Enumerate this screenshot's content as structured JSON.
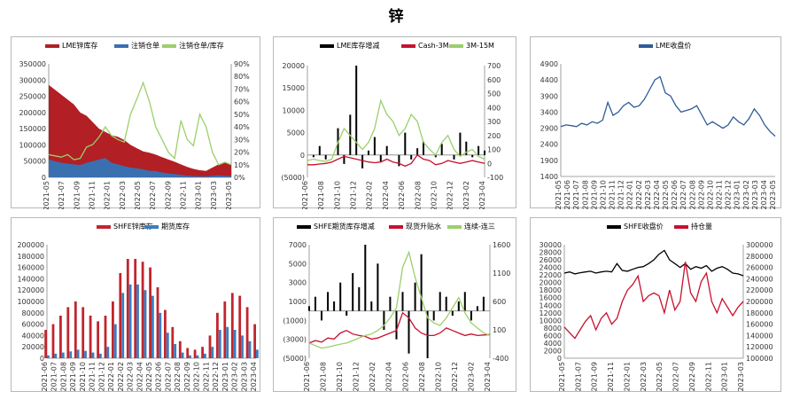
{
  "title": "锌",
  "chart_data": [
    {
      "id": "lme-stock",
      "type": "area",
      "legend": [
        "LME锌库存",
        "注销仓单",
        "注销仓单/库存"
      ],
      "colors": [
        "#b21f24",
        "#3a6fb0",
        "#9ccf6a"
      ],
      "yticks_left": [
        "0",
        "50000",
        "100000",
        "150000",
        "200000",
        "250000",
        "300000",
        "350000"
      ],
      "yticks_right": [
        "0%",
        "10%",
        "20%",
        "30%",
        "40%",
        "50%",
        "60%",
        "70%",
        "80%",
        "90%"
      ],
      "ylim_left": [
        0,
        350000
      ],
      "ylim_right": [
        0,
        90
      ],
      "xticks": [
        "2021-05",
        "2021-07",
        "2021-09",
        "2021-11",
        "2022-01",
        "2022-03",
        "2022-05",
        "2022-07",
        "2022-09",
        "2022-11",
        "2023-01",
        "2023-03",
        "2023-05"
      ],
      "series": [
        {
          "name": "LME锌库存",
          "values": [
            285000,
            270000,
            255000,
            240000,
            225000,
            200000,
            190000,
            170000,
            150000,
            140000,
            130000,
            125000,
            115000,
            100000,
            90000,
            80000,
            76000,
            70000,
            62000,
            55000,
            48000,
            40000,
            32000,
            26000,
            22000,
            20000,
            30000,
            40000,
            45000,
            38000
          ]
        },
        {
          "name": "注销仓单",
          "values": [
            55000,
            50000,
            45000,
            42000,
            40000,
            38000,
            45000,
            50000,
            55000,
            60000,
            45000,
            40000,
            35000,
            30000,
            28000,
            25000,
            20000,
            20000,
            15000,
            12000,
            10000,
            8000,
            5000,
            4000,
            3000,
            3000,
            5000,
            6000,
            5000,
            4000
          ]
        },
        {
          "name": "注销仓单/库存",
          "values": [
            18,
            17,
            16,
            18,
            14,
            15,
            24,
            26,
            32,
            40,
            33,
            30,
            28,
            50,
            62,
            75,
            60,
            40,
            30,
            20,
            15,
            45,
            30,
            25,
            50,
            40,
            20,
            10,
            12,
            10
          ]
        }
      ]
    },
    {
      "id": "lme-spread",
      "type": "bar",
      "legend": [
        "LME库存增减",
        "Cash-3M",
        "3M-15M"
      ],
      "colors": [
        "#000000",
        "#c8102e",
        "#9ccf6a"
      ],
      "yticks_left": [
        "(5000)",
        "0",
        "5000",
        "10000",
        "15000",
        "20000"
      ],
      "yticks_right": [
        "-100",
        "0",
        "100",
        "200",
        "300",
        "400",
        "500",
        "600",
        "700"
      ],
      "ylim_left": [
        -5000,
        20000
      ],
      "ylim_right": [
        -100,
        700
      ],
      "xticks": [
        "2021-06",
        "2021-08",
        "2021-10",
        "2021-12",
        "2022-02",
        "2022-04",
        "2022-06",
        "2022-08",
        "2022-10",
        "2022-12",
        "2023-02",
        "2023-04"
      ],
      "series": [
        {
          "name": "LME库存增减",
          "values": [
            0,
            -500,
            2000,
            -1000,
            0,
            6000,
            -2000,
            9000,
            20000,
            -3000,
            1000,
            4000,
            -1500,
            2000,
            0,
            -2500,
            5000,
            -1000,
            1500,
            3000,
            0,
            -500,
            2500,
            0,
            -1000,
            5000,
            3000,
            -500,
            2000,
            1000
          ]
        },
        {
          "name": "Cash-3M",
          "values": [
            -10,
            -10,
            -5,
            0,
            10,
            30,
            50,
            40,
            30,
            20,
            10,
            5,
            10,
            30,
            10,
            0,
            -20,
            0,
            60,
            30,
            20,
            -10,
            0,
            20,
            10,
            0,
            10,
            20,
            10,
            0
          ]
        },
        {
          "name": "3M-15M",
          "values": [
            20,
            30,
            20,
            15,
            30,
            150,
            250,
            200,
            150,
            100,
            150,
            250,
            450,
            350,
            300,
            200,
            250,
            350,
            300,
            150,
            100,
            60,
            150,
            200,
            100,
            50,
            80,
            100,
            50,
            30
          ]
        }
      ]
    },
    {
      "id": "lme-price",
      "type": "line",
      "legend": [
        "LME收盘价"
      ],
      "colors": [
        "#2e5c9a"
      ],
      "yticks_left": [
        "1400",
        "1900",
        "2400",
        "2900",
        "3400",
        "3900",
        "4400",
        "4900"
      ],
      "ylim_left": [
        1400,
        4900
      ],
      "xticks": [
        "2021-05",
        "2021-06",
        "2021-07",
        "2021-08",
        "2021-09",
        "2021-10",
        "2021-11",
        "2021-12",
        "2022-01",
        "2022-02",
        "2022-03",
        "2022-04",
        "2022-05",
        "2022-06",
        "2022-07",
        "2022-08",
        "2022-09",
        "2022-10",
        "2022-11",
        "2022-12",
        "2023-01",
        "2023-02",
        "2023-03",
        "2023-04",
        "2023-05"
      ],
      "series": [
        {
          "name": "LME收盘价",
          "values": [
            2950,
            3000,
            2980,
            2950,
            3050,
            3000,
            3100,
            3050,
            3150,
            3700,
            3300,
            3400,
            3600,
            3700,
            3550,
            3600,
            3800,
            4100,
            4400,
            4500,
            4000,
            3900,
            3600,
            3400,
            3450,
            3500,
            3600,
            3300,
            3000,
            3100,
            3000,
            2900,
            3000,
            3250,
            3100,
            3000,
            3200,
            3500,
            3300,
            3000,
            2800,
            2650
          ]
        }
      ]
    },
    {
      "id": "shfe-stock",
      "type": "bar",
      "legend": [
        "SHFE锌库存",
        "期货库存"
      ],
      "colors": [
        "#c0262e",
        "#3a7dc0"
      ],
      "yticks_left": [
        "0",
        "20000",
        "40000",
        "60000",
        "80000",
        "100000",
        "120000",
        "140000",
        "160000",
        "180000",
        "200000"
      ],
      "ylim_left": [
        0,
        200000
      ],
      "xticks": [
        "2021-06",
        "2021-07",
        "2021-08",
        "2021-09",
        "2021-10",
        "2021-11",
        "2021-12",
        "2022-01",
        "2022-02",
        "2022-03",
        "2022-04",
        "2022-05",
        "2022-06",
        "2022-07",
        "2022-08",
        "2022-09",
        "2022-10",
        "2022-11",
        "2022-12",
        "2023-01",
        "2023-02",
        "2023-03",
        "2023-04"
      ],
      "series": [
        {
          "name": "SHFE锌库存",
          "values": [
            50000,
            60000,
            75000,
            90000,
            100000,
            90000,
            75000,
            65000,
            75000,
            100000,
            150000,
            175000,
            175000,
            170000,
            160000,
            125000,
            85000,
            55000,
            30000,
            18000,
            15000,
            20000,
            40000,
            80000,
            100000,
            115000,
            110000,
            90000,
            60000
          ]
        },
        {
          "name": "期货库存",
          "values": [
            5000,
            8000,
            10000,
            12000,
            15000,
            13000,
            10000,
            8000,
            20000,
            60000,
            115000,
            130000,
            130000,
            120000,
            110000,
            80000,
            45000,
            25000,
            10000,
            5000,
            5000,
            8000,
            20000,
            50000,
            55000,
            50000,
            40000,
            30000,
            15000
          ]
        }
      ]
    },
    {
      "id": "shfe-spread",
      "type": "bar",
      "legend": [
        "SHFE期货库存增减",
        "现货升贴水",
        "连续-连三"
      ],
      "colors": [
        "#000000",
        "#c8102e",
        "#9ccf6a"
      ],
      "yticks_left": [
        "(5000)",
        "(3000)",
        "(1000)",
        "1000",
        "3000",
        "5000",
        "7000"
      ],
      "yticks_right": [
        "-400",
        "100",
        "600",
        "1100",
        "1600"
      ],
      "ylim_left": [
        -5000,
        7000
      ],
      "ylim_right": [
        -400,
        1850
      ],
      "xticks": [
        "2021-06",
        "2021-08",
        "2021-10",
        "2021-12",
        "2022-02",
        "2022-04",
        "2022-06",
        "2022-08",
        "2022-10",
        "2022-12",
        "2023-02",
        "2023-04"
      ],
      "series": [
        {
          "name": "SHFE期货库存增减",
          "values": [
            500,
            1500,
            -1000,
            2000,
            1000,
            3000,
            -500,
            4000,
            2500,
            7000,
            1000,
            5000,
            -2000,
            1500,
            -3000,
            2000,
            -4500,
            3000,
            6000,
            -5000,
            -1000,
            2000,
            1500,
            -500,
            1000,
            2000,
            -1000,
            500,
            1500,
            0
          ]
        },
        {
          "name": "现货升贴水",
          "values": [
            -100,
            -50,
            -80,
            0,
            -20,
            100,
            150,
            80,
            50,
            30,
            -20,
            0,
            50,
            100,
            150,
            500,
            400,
            200,
            100,
            50,
            50,
            100,
            200,
            150,
            100,
            50,
            80,
            50,
            60,
            70
          ]
        },
        {
          "name": "连续-连三",
          "values": [
            -100,
            -150,
            -200,
            -180,
            -150,
            -120,
            -100,
            -50,
            0,
            50,
            80,
            150,
            250,
            400,
            600,
            1400,
            1700,
            1200,
            800,
            400,
            300,
            250,
            400,
            600,
            800,
            500,
            300,
            200,
            100,
            50
          ]
        }
      ]
    },
    {
      "id": "shfe-price",
      "type": "line",
      "legend": [
        "SHFE收盘价",
        "持仓量"
      ],
      "colors": [
        "#000000",
        "#c8102e"
      ],
      "yticks_left": [
        "0",
        "2000",
        "4000",
        "6000",
        "8000",
        "10000",
        "12000",
        "14000",
        "16000",
        "18000",
        "20000",
        "22000",
        "24000",
        "26000",
        "28000",
        "30000"
      ],
      "yticks_right": [
        "100000",
        "120000",
        "140000",
        "160000",
        "180000",
        "200000",
        "220000",
        "240000",
        "260000",
        "280000",
        "300000"
      ],
      "ylim_left": [
        0,
        30000
      ],
      "ylim_right": [
        100000,
        300000
      ],
      "xticks": [
        "2021-05",
        "2021-07",
        "2021-09",
        "2021-11",
        "2022-01",
        "2022-03",
        "2022-05",
        "2022-07",
        "2022-09",
        "2022-11",
        "2023-01",
        "2023-03"
      ],
      "series": [
        {
          "name": "SHFE收盘价",
          "values": [
            22500,
            22800,
            22300,
            22600,
            22800,
            23000,
            22500,
            22800,
            23000,
            22800,
            25000,
            23200,
            23000,
            23500,
            24000,
            24200,
            25000,
            26000,
            27500,
            28500,
            26000,
            25000,
            24000,
            25000,
            23500,
            24200,
            23800,
            24500,
            23000,
            23800,
            24200,
            23500,
            22500,
            22300,
            21800
          ]
        },
        {
          "name": "持仓量",
          "values": [
            155000,
            145000,
            135000,
            150000,
            165000,
            175000,
            150000,
            170000,
            180000,
            160000,
            170000,
            200000,
            220000,
            230000,
            245000,
            200000,
            210000,
            215000,
            210000,
            180000,
            220000,
            185000,
            200000,
            270000,
            215000,
            200000,
            235000,
            250000,
            200000,
            180000,
            205000,
            190000,
            175000,
            190000,
            200000
          ]
        }
      ]
    }
  ]
}
